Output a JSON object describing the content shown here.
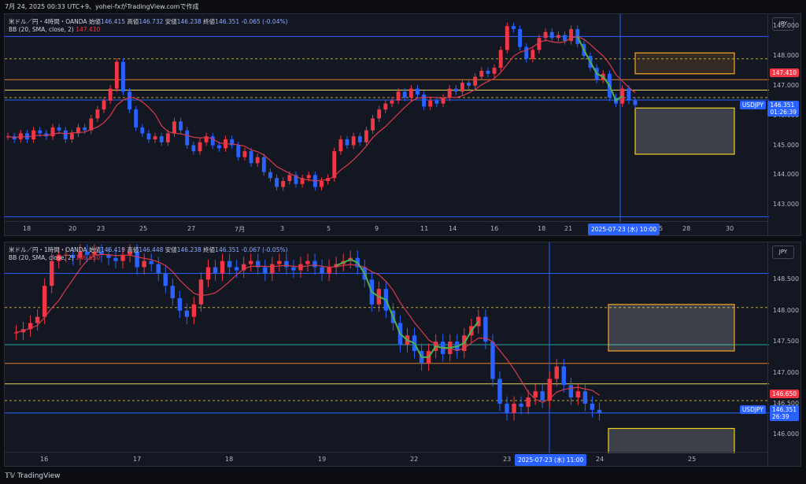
{
  "header": {
    "datetime_line": "7月 24, 2025 00:33 UTC+9、yohei-fxがTradingView.comで作成"
  },
  "chart_data": [
    {
      "type": "candlestick",
      "symbol": "米ドル／円・4時間・OANDA",
      "ohlc": {
        "open_label": "始値",
        "open": "146.415",
        "high_label": "高値",
        "high": "146.732",
        "low_label": "安値",
        "low": "146.238",
        "close_label": "終値",
        "close": "146.351",
        "change": "-0.065 (-0.04%)"
      },
      "indicator": {
        "name": "BB (20, SMA, close, 2)",
        "value": "147.410"
      },
      "currency": "JPY",
      "y_ticks": [
        "149.000",
        "148.000",
        "147.000",
        "146.000",
        "145.000",
        "144.000",
        "143.000"
      ],
      "ylim": [
        142.4,
        149.4
      ],
      "x_ticks": [
        "18",
        "20",
        "23",
        "25",
        "27",
        "7月",
        "3",
        "5",
        "9",
        "11",
        "14",
        "16",
        "18",
        "21",
        "25",
        "28",
        "30"
      ],
      "price_tags": {
        "bb": "147.410",
        "symbol": "USDJPY",
        "last": "146.351",
        "countdown": "01:26:39"
      },
      "crosshair_time": "2025-07-23 (水)   10:00",
      "closes": [
        145.3,
        145.2,
        145.4,
        145.2,
        145.5,
        145.4,
        145.3,
        145.6,
        145.5,
        145.2,
        145.4,
        145.6,
        145.5,
        145.9,
        146.2,
        146.5,
        146.9,
        147.8,
        146.8,
        146.2,
        145.6,
        145.4,
        145.2,
        145.3,
        145.1,
        145.4,
        145.8,
        145.5,
        145.0,
        144.8,
        145.1,
        145.3,
        145.0,
        144.9,
        145.2,
        145.0,
        144.6,
        144.8,
        144.4,
        144.6,
        144.1,
        143.9,
        143.6,
        143.8,
        144.0,
        143.7,
        143.9,
        144.0,
        143.6,
        143.8,
        143.9,
        144.8,
        145.2,
        145.0,
        145.3,
        145.1,
        145.5,
        145.9,
        146.2,
        146.4,
        146.5,
        146.8,
        146.6,
        146.9,
        146.7,
        146.3,
        146.5,
        146.4,
        146.6,
        146.9,
        146.8,
        147.1,
        147.0,
        147.3,
        147.5,
        147.4,
        147.6,
        148.2,
        149.0,
        148.9,
        148.3,
        147.9,
        148.2,
        148.6,
        148.8,
        148.6,
        148.7,
        148.5,
        148.9,
        148.4,
        148.0,
        147.6,
        147.2,
        147.4,
        146.6,
        146.4,
        146.9,
        146.5,
        146.35
      ]
    },
    {
      "type": "candlestick",
      "symbol": "米ドル／円・1時間・OANDA",
      "ohlc": {
        "open_label": "始値",
        "open": "146.419",
        "high_label": "高値",
        "high": "146.448",
        "low_label": "安値",
        "low": "146.238",
        "close_label": "終値",
        "close": "146.351",
        "change": "-0.067 (-0.05%)"
      },
      "indicator": {
        "name": "BB (20, SMA, close, 2)",
        "value": "146.650"
      },
      "currency": "JPY",
      "y_ticks": [
        "148.500",
        "148.000",
        "147.500",
        "147.000",
        "146.500",
        "146.000"
      ],
      "ylim": [
        145.7,
        149.1
      ],
      "x_ticks": [
        "16",
        "17",
        "18",
        "19",
        "22",
        "23",
        "24",
        "25"
      ],
      "price_tags": {
        "bb": "146.650",
        "symbol": "USDJPY",
        "last": "146.351",
        "countdown": "26:39"
      },
      "crosshair_time": "2025-07-23 (水)   11:00",
      "closes": [
        147.65,
        147.7,
        147.8,
        147.9,
        148.4,
        148.8,
        148.9,
        148.9,
        148.85,
        148.95,
        148.9,
        148.95,
        148.9,
        148.85,
        148.8,
        148.9,
        148.95,
        148.7,
        148.8,
        148.75,
        148.6,
        148.4,
        148.2,
        148.0,
        147.9,
        148.1,
        148.5,
        148.7,
        148.6,
        148.8,
        148.7,
        148.65,
        148.75,
        148.8,
        148.7,
        148.6,
        148.75,
        148.8,
        148.7,
        148.65,
        148.75,
        148.8,
        148.7,
        148.6,
        148.7,
        148.75,
        148.8,
        148.85,
        148.7,
        148.5,
        148.1,
        148.35,
        148.0,
        147.8,
        147.45,
        147.6,
        147.35,
        147.15,
        147.35,
        147.5,
        147.3,
        147.5,
        147.35,
        147.6,
        147.75,
        147.9,
        147.5,
        146.9,
        146.5,
        146.35,
        146.5,
        146.45,
        146.6,
        146.7,
        146.55,
        146.9,
        147.1,
        146.8,
        146.6,
        146.7,
        146.5,
        146.4,
        146.35
      ]
    }
  ],
  "footer": {
    "brand": "TradingView"
  }
}
